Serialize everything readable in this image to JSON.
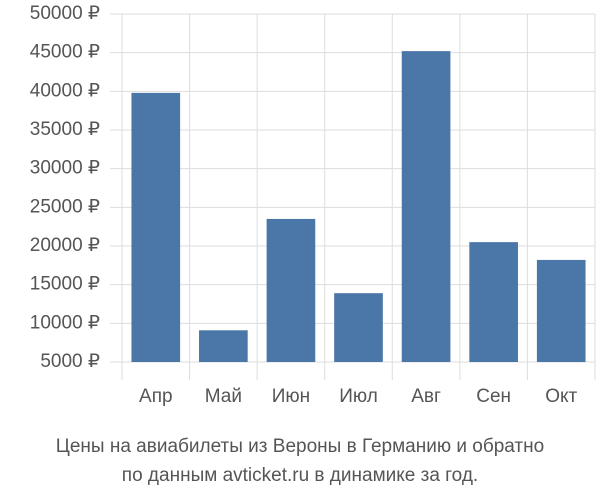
{
  "chart_data": {
    "type": "bar",
    "title": "Цены на авиабилеты из Вероны в Германию и обратно",
    "subtitle": "по данным avticket.ru в динамике за год.",
    "categories": [
      "Апр",
      "Май",
      "Июн",
      "Июл",
      "Авг",
      "Сен",
      "Окт"
    ],
    "values": [
      39800,
      9100,
      23500,
      13900,
      45200,
      20500,
      18200
    ],
    "color": "#4a76a8",
    "ylim": [
      5000,
      50000
    ],
    "yticks": [
      {
        "value": 5000,
        "label": "5000 ₽"
      },
      {
        "value": 10000,
        "label": "10000 ₽"
      },
      {
        "value": 15000,
        "label": "15000 ₽"
      },
      {
        "value": 20000,
        "label": "20000 ₽"
      },
      {
        "value": 25000,
        "label": "25000 ₽"
      },
      {
        "value": 30000,
        "label": "30000 ₽"
      },
      {
        "value": 35000,
        "label": "35000 ₽"
      },
      {
        "value": 40000,
        "label": "40000 ₽"
      },
      {
        "value": 45000,
        "label": "45000 ₽"
      },
      {
        "value": 50000,
        "label": "50000 ₽"
      }
    ],
    "grid": true
  }
}
